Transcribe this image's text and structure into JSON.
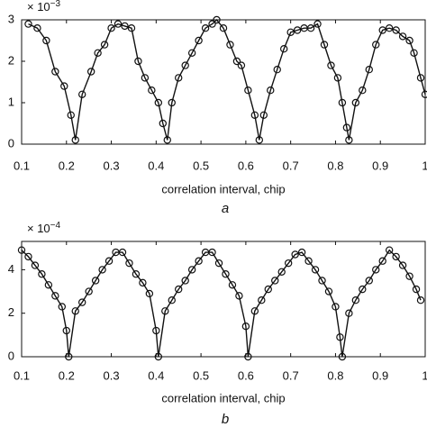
{
  "chart_data": [
    {
      "type": "line",
      "xlabel": "correlation interval, chip",
      "panel_label": "a",
      "y_multiplier": {
        "base": "× 10",
        "power": "−3"
      },
      "color": "#111111",
      "marker": "circle",
      "xlim": [
        0.1,
        1.0
      ],
      "xticks": [
        0.1,
        0.2,
        0.3,
        0.4,
        0.5,
        0.6,
        0.7,
        0.8,
        0.9,
        1
      ],
      "ylim": [
        0,
        3
      ],
      "yticks": [
        0,
        1,
        2,
        3
      ],
      "x": [
        0.115,
        0.135,
        0.155,
        0.175,
        0.195,
        0.21,
        0.22,
        0.235,
        0.255,
        0.27,
        0.285,
        0.3,
        0.315,
        0.33,
        0.345,
        0.36,
        0.375,
        0.39,
        0.405,
        0.415,
        0.425,
        0.435,
        0.45,
        0.465,
        0.48,
        0.495,
        0.51,
        0.525,
        0.535,
        0.55,
        0.565,
        0.58,
        0.59,
        0.605,
        0.62,
        0.63,
        0.64,
        0.655,
        0.67,
        0.685,
        0.7,
        0.715,
        0.73,
        0.745,
        0.76,
        0.775,
        0.79,
        0.805,
        0.815,
        0.825,
        0.83,
        0.845,
        0.86,
        0.875,
        0.89,
        0.905,
        0.92,
        0.935,
        0.95,
        0.965,
        0.975,
        0.99,
        1.0
      ],
      "values": [
        2.9,
        2.8,
        2.5,
        1.75,
        1.4,
        0.7,
        0.1,
        1.2,
        1.75,
        2.2,
        2.4,
        2.8,
        2.9,
        2.85,
        2.8,
        2.0,
        1.6,
        1.3,
        1.0,
        0.5,
        0.1,
        1.0,
        1.6,
        1.9,
        2.2,
        2.5,
        2.8,
        2.9,
        3.0,
        2.8,
        2.4,
        2.0,
        1.9,
        1.3,
        0.7,
        0.1,
        0.7,
        1.3,
        1.8,
        2.3,
        2.7,
        2.75,
        2.8,
        2.8,
        2.9,
        2.4,
        1.9,
        1.6,
        1.0,
        0.4,
        0.1,
        1.0,
        1.3,
        1.8,
        2.4,
        2.75,
        2.8,
        2.75,
        2.6,
        2.5,
        2.2,
        1.6,
        1.2
      ]
    },
    {
      "type": "line",
      "xlabel": "correlation interval, chip",
      "panel_label": "b",
      "y_multiplier": {
        "base": "× 10",
        "power": "−4"
      },
      "color": "#111111",
      "marker": "circle",
      "xlim": [
        0.1,
        1.0
      ],
      "xticks": [
        0.1,
        0.2,
        0.3,
        0.4,
        0.5,
        0.6,
        0.7,
        0.8,
        0.9,
        1
      ],
      "ylim": [
        0,
        5.3
      ],
      "yticks": [
        0,
        2,
        4
      ],
      "x": [
        0.1,
        0.115,
        0.13,
        0.145,
        0.16,
        0.175,
        0.19,
        0.2,
        0.205,
        0.22,
        0.235,
        0.25,
        0.265,
        0.28,
        0.295,
        0.31,
        0.325,
        0.34,
        0.355,
        0.37,
        0.385,
        0.4,
        0.405,
        0.42,
        0.435,
        0.45,
        0.465,
        0.48,
        0.495,
        0.51,
        0.525,
        0.54,
        0.555,
        0.57,
        0.585,
        0.6,
        0.605,
        0.62,
        0.635,
        0.65,
        0.665,
        0.68,
        0.695,
        0.71,
        0.725,
        0.74,
        0.755,
        0.77,
        0.785,
        0.8,
        0.81,
        0.815,
        0.83,
        0.845,
        0.86,
        0.875,
        0.89,
        0.905,
        0.92,
        0.935,
        0.95,
        0.965,
        0.98,
        0.99
      ],
      "values": [
        4.9,
        4.6,
        4.2,
        3.8,
        3.3,
        2.8,
        2.3,
        1.2,
        0.0,
        2.1,
        2.5,
        3.0,
        3.5,
        4.0,
        4.4,
        4.8,
        4.8,
        4.3,
        3.8,
        3.4,
        2.9,
        1.2,
        0.0,
        2.1,
        2.6,
        3.1,
        3.5,
        4.0,
        4.4,
        4.8,
        4.8,
        4.3,
        3.8,
        3.3,
        2.8,
        1.4,
        0.0,
        2.1,
        2.6,
        3.1,
        3.5,
        3.9,
        4.3,
        4.7,
        4.8,
        4.4,
        4.0,
        3.5,
        3.0,
        2.3,
        0.9,
        0.0,
        2.0,
        2.6,
        3.1,
        3.5,
        4.0,
        4.4,
        4.9,
        4.6,
        4.2,
        3.7,
        3.1,
        2.6
      ]
    }
  ]
}
